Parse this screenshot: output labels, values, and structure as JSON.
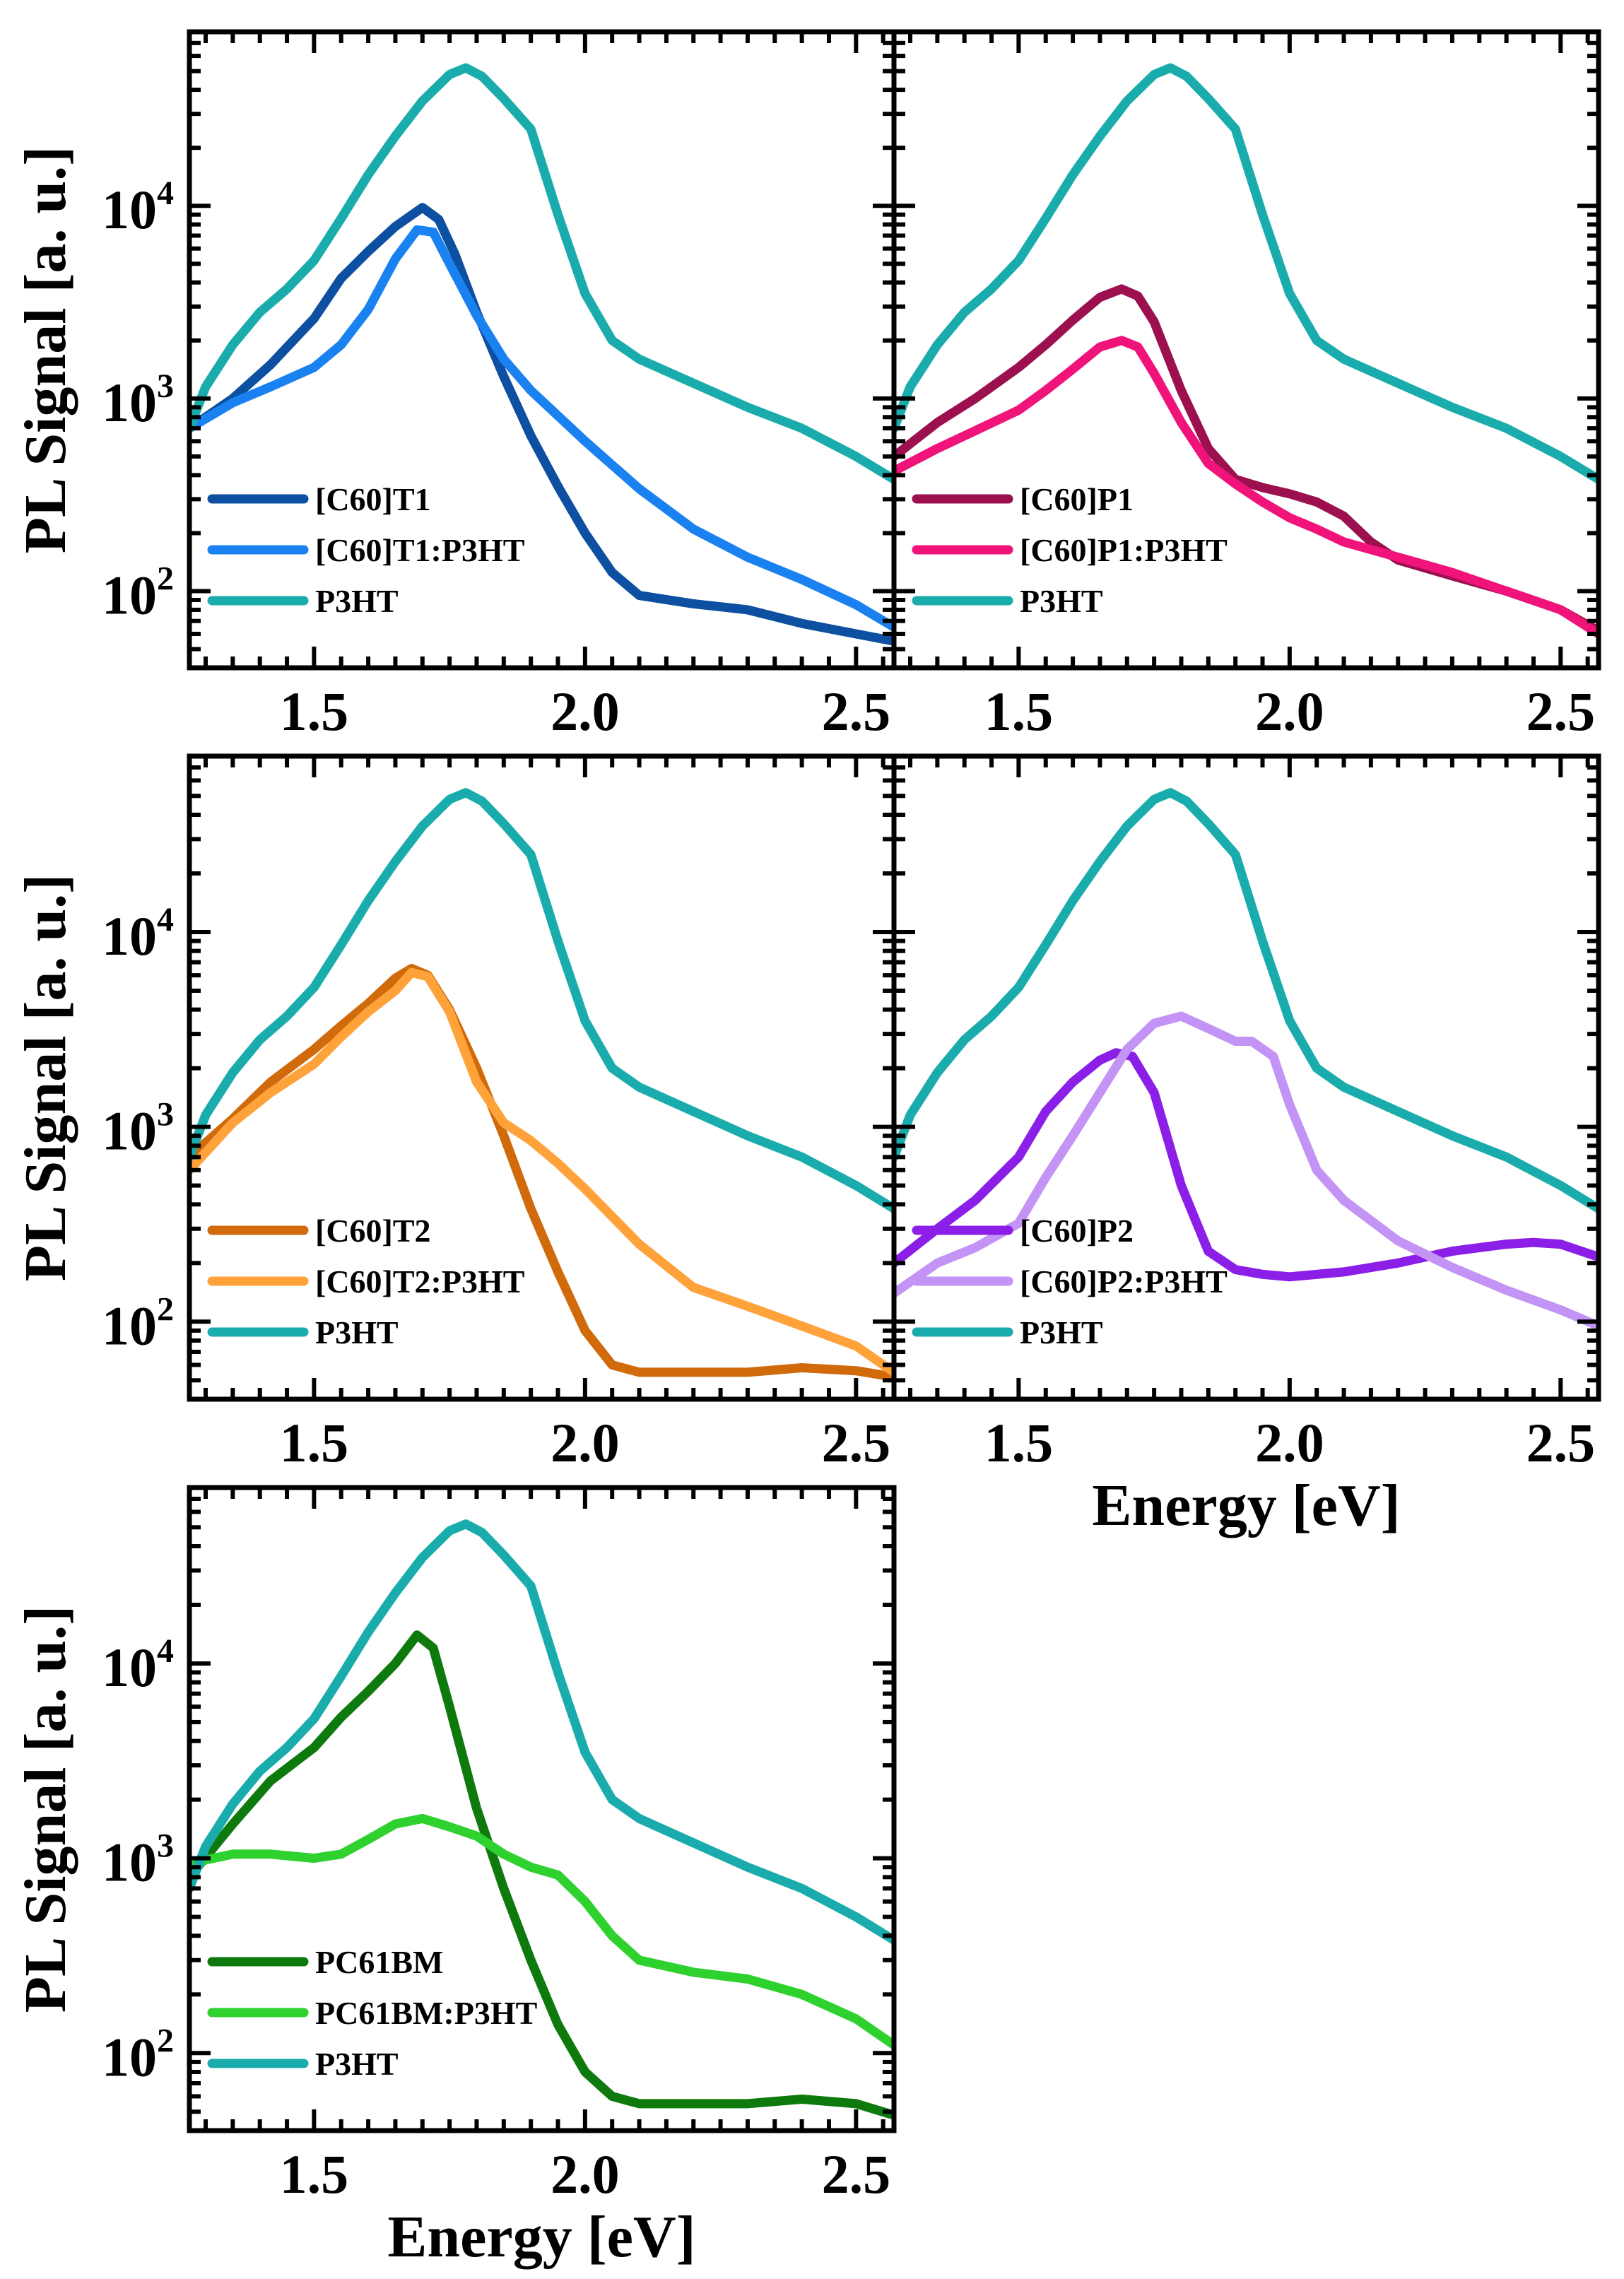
{
  "chart_data": {
    "panels": [
      {
        "id": "a",
        "type": "line",
        "ylabel": "PL Signal [a. u.]",
        "xlabel": "",
        "yscale": "log",
        "xlim": [
          1.27,
          2.57
        ],
        "ylim": [
          40,
          80000
        ],
        "xticks": [
          "1.5",
          "2.0",
          "2.5"
        ],
        "yticks": [
          {
            "base": "10",
            "exp": "2"
          },
          {
            "base": "10",
            "exp": "3"
          },
          {
            "base": "10",
            "exp": "4"
          }
        ],
        "legend": "bottom-left",
        "series": [
          {
            "name": "[C60]T1",
            "color": "#0d4fa0",
            "x": [
              1.27,
              1.35,
              1.42,
              1.5,
              1.55,
              1.6,
              1.65,
              1.7,
              1.73,
              1.76,
              1.8,
              1.85,
              1.9,
              1.95,
              2.0,
              2.05,
              2.1,
              2.2,
              2.3,
              2.4,
              2.5,
              2.57
            ],
            "y": [
              700,
              1000,
              1500,
              2600,
              4200,
              5800,
              7800,
              9800,
              8500,
              5600,
              2800,
              1300,
              640,
              350,
              200,
              125,
              95,
              86,
              80,
              68,
              60,
              55
            ]
          },
          {
            "name": "[C60]T1:P3HT",
            "color": "#1a82f0",
            "x": [
              1.27,
              1.35,
              1.42,
              1.5,
              1.55,
              1.6,
              1.65,
              1.69,
              1.72,
              1.75,
              1.8,
              1.85,
              1.9,
              2.0,
              2.1,
              2.2,
              2.3,
              2.4,
              2.5,
              2.57
            ],
            "y": [
              700,
              950,
              1150,
              1450,
              1900,
              2900,
              5300,
              7500,
              7300,
              5000,
              2700,
              1600,
              1100,
              600,
              340,
              210,
              150,
              115,
              85,
              65
            ]
          },
          {
            "name": "P3HT",
            "color": "#1aacac",
            "x": [
              1.27,
              1.3,
              1.35,
              1.4,
              1.45,
              1.5,
              1.55,
              1.6,
              1.65,
              1.7,
              1.75,
              1.78,
              1.81,
              1.85,
              1.9,
              1.95,
              2.0,
              2.05,
              2.1,
              2.2,
              2.3,
              2.4,
              2.5,
              2.57
            ],
            "y": [
              700,
              1150,
              1900,
              2800,
              3700,
              5200,
              8600,
              14500,
              23000,
              35000,
              48000,
              52000,
              47000,
              36000,
              25000,
              9000,
              3500,
              2000,
              1600,
              1200,
              900,
              700,
              500,
              380
            ]
          }
        ]
      },
      {
        "id": "b",
        "type": "line",
        "ylabel": "",
        "xlabel": "",
        "yscale": "log",
        "xlim": [
          1.27,
          2.57
        ],
        "ylim": [
          40,
          80000
        ],
        "xticks": [
          "1.5",
          "2.0",
          "2.5"
        ],
        "yticks": [],
        "legend": "bottom-left",
        "series": [
          {
            "name": "[C60]P1",
            "color": "#9c1050",
            "x": [
              1.27,
              1.35,
              1.42,
              1.5,
              1.55,
              1.6,
              1.65,
              1.69,
              1.72,
              1.75,
              1.8,
              1.85,
              1.9,
              1.95,
              2.0,
              2.05,
              2.1,
              2.15,
              2.2,
              2.3,
              2.4,
              2.5,
              2.57
            ],
            "y": [
              500,
              750,
              1000,
              1450,
              1900,
              2550,
              3350,
              3700,
              3400,
              2500,
              1100,
              550,
              380,
              345,
              320,
              290,
              245,
              180,
              145,
              120,
              100,
              80,
              62
            ]
          },
          {
            "name": "[C60]P1:P3HT",
            "color": "#f0137a",
            "x": [
              1.27,
              1.35,
              1.42,
              1.5,
              1.55,
              1.6,
              1.65,
              1.69,
              1.72,
              1.75,
              1.8,
              1.85,
              1.9,
              1.95,
              2.0,
              2.05,
              2.1,
              2.2,
              2.3,
              2.4,
              2.5,
              2.57
            ],
            "y": [
              420,
              550,
              680,
              870,
              1100,
              1420,
              1850,
              2000,
              1850,
              1350,
              750,
              460,
              360,
              290,
              240,
              210,
              180,
              150,
              125,
              100,
              80,
              60
            ]
          },
          {
            "name": "P3HT",
            "color": "#1aacac",
            "x": [
              1.27,
              1.3,
              1.35,
              1.4,
              1.45,
              1.5,
              1.55,
              1.6,
              1.65,
              1.7,
              1.75,
              1.78,
              1.81,
              1.85,
              1.9,
              1.95,
              2.0,
              2.05,
              2.1,
              2.2,
              2.3,
              2.4,
              2.5,
              2.57
            ],
            "y": [
              700,
              1150,
              1900,
              2800,
              3700,
              5200,
              8600,
              14500,
              23000,
              35000,
              48000,
              52000,
              47000,
              36000,
              25000,
              9000,
              3500,
              2000,
              1600,
              1200,
              900,
              700,
              500,
              380
            ]
          }
        ]
      },
      {
        "id": "c",
        "type": "line",
        "ylabel": "PL Signal [a. u.]",
        "xlabel": "",
        "yscale": "log",
        "xlim": [
          1.27,
          2.57
        ],
        "ylim": [
          40,
          80000
        ],
        "xticks": [
          "1.5",
          "2.0",
          "2.5"
        ],
        "yticks": [
          {
            "base": "10",
            "exp": "2"
          },
          {
            "base": "10",
            "exp": "3"
          },
          {
            "base": "10",
            "exp": "4"
          }
        ],
        "legend": "bottom-left",
        "series": [
          {
            "name": "[C60]T2",
            "color": "#d06a0a",
            "x": [
              1.27,
              1.35,
              1.42,
              1.5,
              1.55,
              1.6,
              1.65,
              1.68,
              1.71,
              1.75,
              1.8,
              1.85,
              1.9,
              1.95,
              2.0,
              2.05,
              2.1,
              2.2,
              2.3,
              2.4,
              2.5,
              2.57
            ],
            "y": [
              700,
              1100,
              1700,
              2500,
              3300,
              4300,
              5800,
              6500,
              6000,
              4000,
              2000,
              900,
              380,
              180,
              90,
              60,
              55,
              55,
              55,
              58,
              56,
              52
            ]
          },
          {
            "name": "[C60]T2:P3HT",
            "color": "#ffa23a",
            "x": [
              1.27,
              1.35,
              1.42,
              1.5,
              1.55,
              1.6,
              1.65,
              1.68,
              1.71,
              1.75,
              1.8,
              1.85,
              1.9,
              1.95,
              2.0,
              2.1,
              2.2,
              2.3,
              2.4,
              2.5,
              2.57
            ],
            "y": [
              600,
              1050,
              1500,
              2100,
              2900,
              3900,
              5000,
              6200,
              5900,
              3900,
              1700,
              1050,
              850,
              650,
              480,
              250,
              150,
              120,
              95,
              75,
              55
            ]
          },
          {
            "name": "P3HT",
            "color": "#1aacac",
            "x": [
              1.27,
              1.3,
              1.35,
              1.4,
              1.45,
              1.5,
              1.55,
              1.6,
              1.65,
              1.7,
              1.75,
              1.78,
              1.81,
              1.85,
              1.9,
              1.95,
              2.0,
              2.05,
              2.1,
              2.2,
              2.3,
              2.4,
              2.5,
              2.57
            ],
            "y": [
              700,
              1150,
              1900,
              2800,
              3700,
              5200,
              8600,
              14500,
              23000,
              35000,
              48000,
              52000,
              47000,
              36000,
              25000,
              9000,
              3500,
              2000,
              1600,
              1200,
              900,
              700,
              500,
              380
            ]
          }
        ]
      },
      {
        "id": "d",
        "type": "line",
        "ylabel": "",
        "xlabel": "Energy [eV]",
        "yscale": "log",
        "xlim": [
          1.27,
          2.57
        ],
        "ylim": [
          40,
          80000
        ],
        "xticks": [
          "1.5",
          "2.0",
          "2.5"
        ],
        "yticks": [],
        "legend": "bottom-left",
        "series": [
          {
            "name": "[C60]P2",
            "color": "#8b1fe8",
            "x": [
              1.27,
              1.35,
              1.42,
              1.5,
              1.55,
              1.6,
              1.65,
              1.68,
              1.71,
              1.75,
              1.8,
              1.85,
              1.9,
              1.95,
              2.0,
              2.1,
              2.2,
              2.3,
              2.4,
              2.45,
              2.5,
              2.57
            ],
            "y": [
              200,
              300,
              420,
              700,
              1200,
              1700,
              2200,
              2400,
              2300,
              1500,
              500,
              230,
              185,
              175,
              170,
              180,
              200,
              230,
              250,
              255,
              250,
              215
            ]
          },
          {
            "name": "[C60]P2:P3HT",
            "color": "#c393f5",
            "x": [
              1.27,
              1.35,
              1.42,
              1.5,
              1.55,
              1.6,
              1.65,
              1.7,
              1.75,
              1.8,
              1.85,
              1.9,
              1.93,
              1.97,
              2.0,
              2.05,
              2.1,
              2.2,
              2.3,
              2.4,
              2.5,
              2.57
            ],
            "y": [
              140,
              200,
              240,
              320,
              550,
              900,
              1500,
              2500,
              3400,
              3700,
              3200,
              2750,
              2750,
              2300,
              1300,
              600,
              420,
              260,
              190,
              145,
              115,
              95
            ]
          },
          {
            "name": "P3HT",
            "color": "#1aacac",
            "x": [
              1.27,
              1.3,
              1.35,
              1.4,
              1.45,
              1.5,
              1.55,
              1.6,
              1.65,
              1.7,
              1.75,
              1.78,
              1.81,
              1.85,
              1.9,
              1.95,
              2.0,
              2.05,
              2.1,
              2.2,
              2.3,
              2.4,
              2.5,
              2.57
            ],
            "y": [
              700,
              1150,
              1900,
              2800,
              3700,
              5200,
              8600,
              14500,
              23000,
              35000,
              48000,
              52000,
              47000,
              36000,
              25000,
              9000,
              3500,
              2000,
              1600,
              1200,
              900,
              700,
              500,
              380
            ]
          }
        ]
      },
      {
        "id": "e",
        "type": "line",
        "ylabel": "PL Signal [a. u.]",
        "xlabel": "Energy [eV]",
        "yscale": "log",
        "xlim": [
          1.27,
          2.57
        ],
        "ylim": [
          40,
          80000
        ],
        "xticks": [
          "1.5",
          "2.0",
          "2.5"
        ],
        "yticks": [
          {
            "base": "10",
            "exp": "2"
          },
          {
            "base": "10",
            "exp": "3"
          },
          {
            "base": "10",
            "exp": "4"
          }
        ],
        "legend": "bottom-left",
        "series": [
          {
            "name": "PC61BM",
            "color": "#0e7a0e",
            "x": [
              1.27,
              1.35,
              1.42,
              1.5,
              1.55,
              1.6,
              1.65,
              1.69,
              1.72,
              1.75,
              1.8,
              1.85,
              1.9,
              1.95,
              2.0,
              2.05,
              2.1,
              2.2,
              2.3,
              2.4,
              2.5,
              2.57
            ],
            "y": [
              800,
              1500,
              2500,
              3700,
              5300,
              7200,
              10000,
              14000,
              12000,
              6000,
              1800,
              700,
              300,
              140,
              80,
              60,
              55,
              55,
              55,
              58,
              55,
              48
            ]
          },
          {
            "name": "PC61BM:P3HT",
            "color": "#2ed12e",
            "x": [
              1.27,
              1.3,
              1.35,
              1.42,
              1.5,
              1.55,
              1.6,
              1.65,
              1.7,
              1.75,
              1.8,
              1.85,
              1.9,
              1.95,
              2.0,
              2.05,
              2.1,
              2.2,
              2.3,
              2.4,
              2.5,
              2.57
            ],
            "y": [
              900,
              980,
              1050,
              1050,
              1000,
              1050,
              1250,
              1500,
              1600,
              1450,
              1300,
              1050,
              900,
              820,
              600,
              400,
              300,
              260,
              240,
              200,
              150,
              110
            ]
          },
          {
            "name": "P3HT",
            "color": "#1aacac",
            "x": [
              1.27,
              1.3,
              1.35,
              1.4,
              1.45,
              1.5,
              1.55,
              1.6,
              1.65,
              1.7,
              1.75,
              1.78,
              1.81,
              1.85,
              1.9,
              1.95,
              2.0,
              2.05,
              2.1,
              2.2,
              2.3,
              2.4,
              2.5,
              2.57
            ],
            "y": [
              700,
              1150,
              1900,
              2800,
              3700,
              5200,
              8600,
              14500,
              23000,
              35000,
              48000,
              52000,
              47000,
              36000,
              25000,
              9000,
              3500,
              2000,
              1600,
              1200,
              900,
              700,
              500,
              380
            ]
          }
        ]
      }
    ]
  }
}
